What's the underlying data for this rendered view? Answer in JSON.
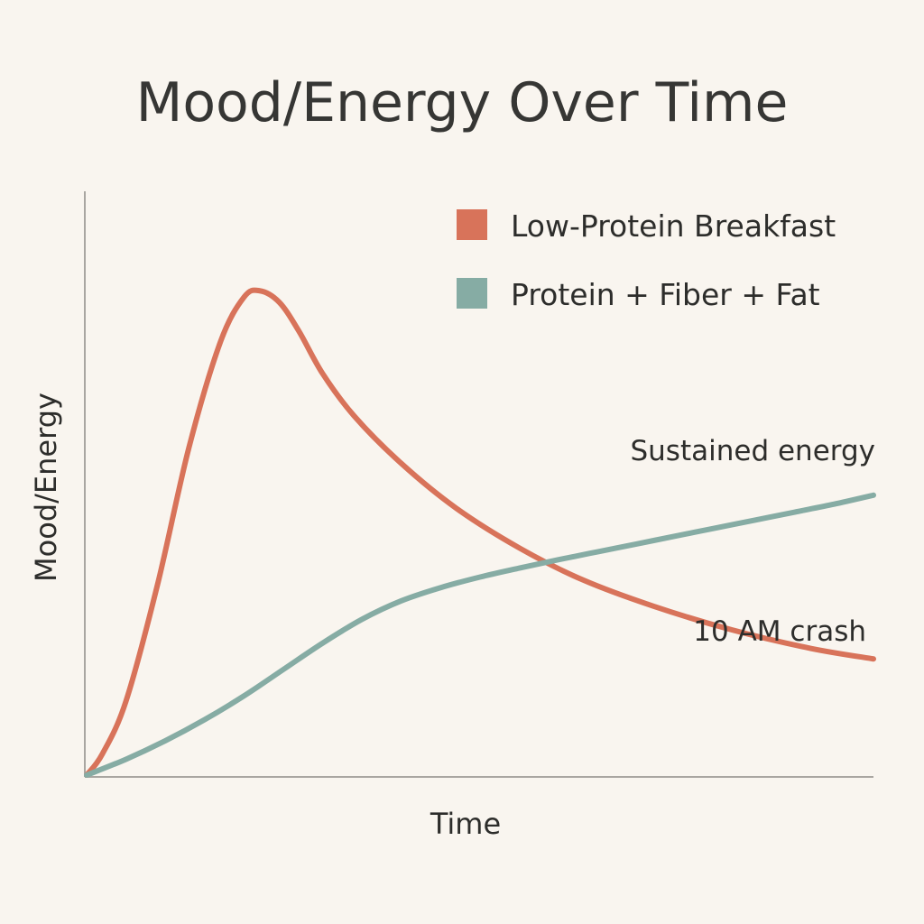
{
  "chart_data": {
    "type": "line",
    "title": "Mood/Energy Over Time",
    "xlabel": "Time",
    "ylabel": "Mood/Energy",
    "xlim": [
      0,
      100
    ],
    "ylim": [
      0,
      100
    ],
    "grid": false,
    "legend_position": "top-right",
    "series": [
      {
        "name": "Low-Protein Breakfast",
        "color": "#d8735a",
        "x": [
          0,
          2,
          5,
          9,
          13,
          17,
          20,
          22,
          24.5,
          27,
          30,
          34,
          40,
          47,
          55,
          63,
          72,
          82,
          92,
          100
        ],
        "y": [
          0,
          4,
          14,
          36,
          62,
          82,
          90.5,
          91.7,
          89.5,
          84,
          76,
          68,
          59,
          50.5,
          43,
          37,
          32,
          27.5,
          24,
          22
        ]
      },
      {
        "name": "Protein + Fiber + Fat",
        "color": "#86aca4",
        "x": [
          0,
          5,
          10,
          15,
          20,
          25,
          30,
          35,
          40,
          45,
          50,
          55,
          60,
          65,
          70,
          75,
          80,
          85,
          90,
          95,
          100
        ],
        "y": [
          0,
          3,
          6.5,
          10.5,
          15,
          20,
          25,
          29.5,
          33,
          35.5,
          37.5,
          39.2,
          40.8,
          42.3,
          43.8,
          45.3,
          46.8,
          48.3,
          49.8,
          51.3,
          53
        ]
      }
    ],
    "annotations": [
      {
        "text": "Sustained energy"
      },
      {
        "text": "10 AM crash"
      }
    ]
  }
}
